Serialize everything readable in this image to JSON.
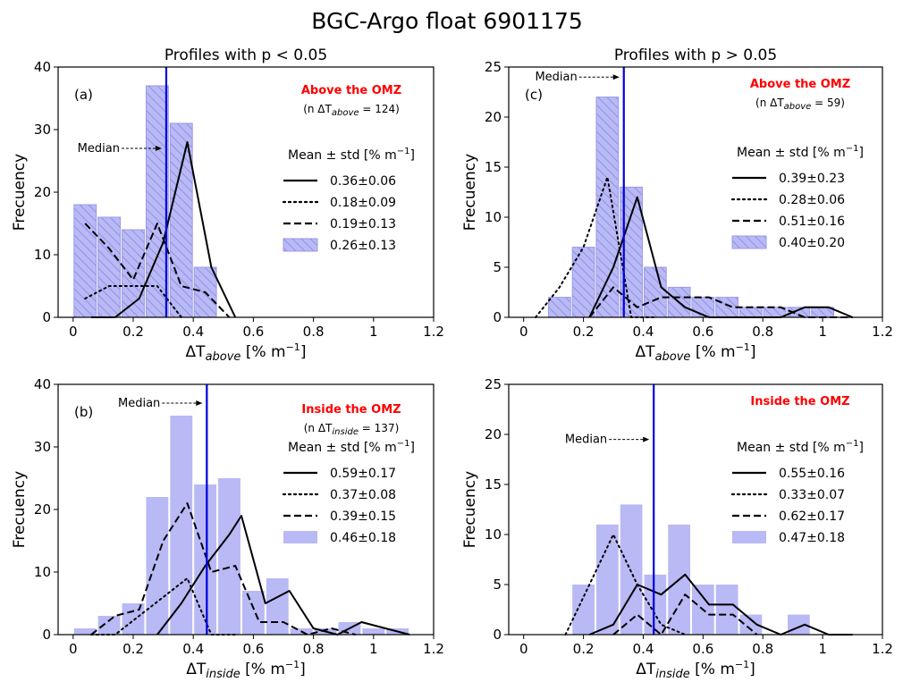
{
  "figure": {
    "title": "BGC-Argo float 6901175",
    "colors": {
      "hist": "#b9b9f5",
      "hist_edge": "#9a9ae8",
      "median": "#0000dd",
      "omz_text": "#ff0000",
      "lines": "#000000"
    }
  },
  "chart_data": [
    {
      "type": "bar",
      "panel": "(a)",
      "title": "Profiles with p < 0.05",
      "region_label": "Above the OMZ",
      "n_label": "(n ΔT",
      "n_sub": "above",
      "n_value": " = 124)",
      "xlabel": "ΔT",
      "xlabel_sub": "above",
      "xlabel_unit": "[% m",
      "ylabel": "Frecuency",
      "xlim": [
        -0.05,
        1.2
      ],
      "ylim": [
        0,
        40
      ],
      "xticks": [
        0,
        0.2,
        0.4,
        0.6,
        0.8,
        1,
        1.2
      ],
      "xtick_labels": [
        "0",
        "0.2",
        "0.4",
        "0.6",
        "0.8",
        "1",
        "1.2"
      ],
      "yticks": [
        0,
        10,
        20,
        30,
        40
      ],
      "hatched": true,
      "bin_width": 0.08,
      "bins": [
        {
          "x": 0.0,
          "value": 18
        },
        {
          "x": 0.08,
          "value": 16
        },
        {
          "x": 0.16,
          "value": 14
        },
        {
          "x": 0.24,
          "value": 37
        },
        {
          "x": 0.32,
          "value": 31
        },
        {
          "x": 0.4,
          "value": 8
        }
      ],
      "median": 0.31,
      "median_label": "Median",
      "median_label_y": 27,
      "median_side": "left",
      "legend_title": "Mean ± std [% m",
      "series": [
        {
          "name": "0.36±0.06",
          "style": "solid",
          "x": [
            0.06,
            0.14,
            0.22,
            0.3,
            0.38,
            0.46,
            0.54
          ],
          "y": [
            0,
            0,
            3,
            12,
            28,
            8,
            0
          ]
        },
        {
          "name": "0.18±0.09",
          "style": "dotted",
          "x": [
            0.04,
            0.12,
            0.2,
            0.28,
            0.36
          ],
          "y": [
            3,
            5,
            5,
            5,
            0
          ]
        },
        {
          "name": "0.19±0.13",
          "style": "dashed",
          "x": [
            0.04,
            0.12,
            0.2,
            0.28,
            0.36,
            0.44,
            0.52
          ],
          "y": [
            15,
            11,
            6,
            15,
            5,
            4,
            0
          ]
        },
        {
          "name": "0.26±0.13",
          "style": "hist"
        }
      ]
    },
    {
      "type": "bar",
      "panel": "(c)",
      "title": "Profiles with p > 0.05",
      "region_label": "Above the OMZ",
      "n_label": "(n ΔT",
      "n_sub": "above",
      "n_value": " = 59)",
      "xlabel": "ΔT",
      "xlabel_sub": "above",
      "xlabel_unit": "[% m",
      "ylabel": "Frecuency",
      "xlim": [
        -0.05,
        1.2
      ],
      "ylim": [
        0,
        25
      ],
      "xticks": [
        0,
        0.2,
        0.4,
        0.6,
        0.8,
        1,
        1.2
      ],
      "xtick_labels": [
        "0",
        "0.2",
        "0.4",
        "0.6",
        "0.8",
        "1",
        "1.2"
      ],
      "yticks": [
        0,
        5,
        10,
        15,
        20,
        25
      ],
      "hatched": true,
      "bin_width": 0.08,
      "bins": [
        {
          "x": 0.08,
          "value": 2
        },
        {
          "x": 0.16,
          "value": 7
        },
        {
          "x": 0.24,
          "value": 22
        },
        {
          "x": 0.32,
          "value": 13
        },
        {
          "x": 0.4,
          "value": 5
        },
        {
          "x": 0.48,
          "value": 3
        },
        {
          "x": 0.56,
          "value": 2
        },
        {
          "x": 0.64,
          "value": 2
        },
        {
          "x": 0.72,
          "value": 1
        },
        {
          "x": 0.8,
          "value": 1
        },
        {
          "x": 0.88,
          "value": 1
        },
        {
          "x": 0.96,
          "value": 1
        }
      ],
      "median": 0.335,
      "median_label": "Median",
      "median_label_y": 24,
      "median_side": "left",
      "legend_title": "Mean ± std [% m",
      "series": [
        {
          "name": "0.39±0.23",
          "style": "solid",
          "x": [
            0.22,
            0.3,
            0.38,
            0.46,
            0.54,
            0.62,
            0.7,
            0.78,
            0.86,
            0.94,
            1.02,
            1.1
          ],
          "y": [
            0,
            5,
            12,
            3,
            1,
            0,
            0,
            0,
            0,
            1,
            1,
            0
          ]
        },
        {
          "name": "0.28±0.06",
          "style": "dotted",
          "x": [
            0.04,
            0.12,
            0.2,
            0.28,
            0.36,
            0.44
          ],
          "y": [
            0,
            3,
            7,
            14,
            0,
            0
          ]
        },
        {
          "name": "0.51±0.16",
          "style": "dashed",
          "x": [
            0.22,
            0.3,
            0.38,
            0.46,
            0.54,
            0.62,
            0.7,
            0.78,
            0.86,
            0.94,
            1.02,
            1.1
          ],
          "y": [
            0,
            3,
            1,
            2,
            2,
            2,
            1,
            1,
            1,
            0,
            0,
            0
          ]
        },
        {
          "name": "0.40±0.20",
          "style": "hist"
        }
      ]
    },
    {
      "type": "bar",
      "panel": "(b)",
      "title": "",
      "region_label": "Inside the OMZ",
      "n_label": "(n ΔT",
      "n_sub": "inside",
      "n_value": " = 137)",
      "xlabel": "ΔT",
      "xlabel_sub": "inside",
      "xlabel_unit": "[% m",
      "ylabel": "Frecuency",
      "xlim": [
        -0.05,
        1.2
      ],
      "ylim": [
        0,
        40
      ],
      "xticks": [
        0,
        0.2,
        0.4,
        0.6,
        0.8,
        1,
        1.2
      ],
      "xtick_labels": [
        "0",
        "0.2",
        "0.4",
        "0.6",
        "0.8",
        "1",
        "1.2"
      ],
      "yticks": [
        0,
        10,
        20,
        30,
        40
      ],
      "hatched": false,
      "bin_width": 0.08,
      "bins": [
        {
          "x": 0.0,
          "value": 1
        },
        {
          "x": 0.08,
          "value": 3
        },
        {
          "x": 0.16,
          "value": 5
        },
        {
          "x": 0.24,
          "value": 22
        },
        {
          "x": 0.32,
          "value": 35
        },
        {
          "x": 0.4,
          "value": 24
        },
        {
          "x": 0.48,
          "value": 25
        },
        {
          "x": 0.56,
          "value": 7
        },
        {
          "x": 0.64,
          "value": 9
        },
        {
          "x": 0.72,
          "value": 1
        },
        {
          "x": 0.8,
          "value": 1
        },
        {
          "x": 0.88,
          "value": 2
        },
        {
          "x": 0.96,
          "value": 1
        },
        {
          "x": 1.04,
          "value": 1
        }
      ],
      "median": 0.445,
      "median_label": "Median",
      "median_label_y": 37,
      "median_side": "left",
      "legend_title": "Mean ± std [% m",
      "series": [
        {
          "name": "0.59±0.17",
          "style": "solid",
          "x": [
            0.28,
            0.36,
            0.44,
            0.52,
            0.56,
            0.64,
            0.72,
            0.8,
            0.88,
            0.96,
            1.04,
            1.12
          ],
          "y": [
            0,
            5,
            11,
            16,
            19,
            5,
            7,
            1,
            0,
            2,
            1,
            0
          ]
        },
        {
          "name": "0.37±0.08",
          "style": "dotted",
          "x": [
            0.06,
            0.14,
            0.22,
            0.3,
            0.38,
            0.46,
            0.54
          ],
          "y": [
            0,
            0,
            3,
            6,
            9,
            0,
            0
          ]
        },
        {
          "name": "0.39±0.15",
          "style": "dashed",
          "x": [
            0.06,
            0.14,
            0.22,
            0.3,
            0.38,
            0.46,
            0.54,
            0.62,
            0.7,
            0.78,
            0.86,
            0.94
          ],
          "y": [
            0,
            3,
            4,
            15,
            21,
            10,
            11,
            2,
            2,
            0,
            1,
            0
          ]
        },
        {
          "name": "0.46±0.18",
          "style": "hist"
        }
      ]
    },
    {
      "type": "bar",
      "panel": "",
      "title": "",
      "region_label": "Inside the OMZ",
      "n_label": "",
      "n_sub": "",
      "n_value": "",
      "xlabel": "ΔT",
      "xlabel_sub": "inside",
      "xlabel_unit": "[% m",
      "ylabel": "Frecuency",
      "xlim": [
        -0.05,
        1.2
      ],
      "ylim": [
        0,
        25
      ],
      "xticks": [
        0,
        0.2,
        0.4,
        0.6,
        0.8,
        1,
        1.2
      ],
      "xtick_labels": [
        "0",
        "0.2",
        "0.4",
        "0.6",
        "0.8",
        "1",
        "1.2"
      ],
      "yticks": [
        0,
        5,
        10,
        15,
        20,
        25
      ],
      "hatched": false,
      "bin_width": 0.08,
      "bins": [
        {
          "x": 0.16,
          "value": 5
        },
        {
          "x": 0.24,
          "value": 11
        },
        {
          "x": 0.32,
          "value": 13
        },
        {
          "x": 0.4,
          "value": 6
        },
        {
          "x": 0.48,
          "value": 11
        },
        {
          "x": 0.56,
          "value": 5
        },
        {
          "x": 0.64,
          "value": 5
        },
        {
          "x": 0.72,
          "value": 2
        },
        {
          "x": 0.88,
          "value": 2
        }
      ],
      "median": 0.435,
      "median_label": "Median",
      "median_label_y": 19.5,
      "median_side": "left",
      "legend_title": "Mean ± std [% m",
      "series": [
        {
          "name": "0.55±0.16",
          "style": "solid",
          "x": [
            0.22,
            0.3,
            0.38,
            0.46,
            0.54,
            0.62,
            0.7,
            0.78,
            0.86,
            0.94,
            1.02,
            1.1
          ],
          "y": [
            0,
            1,
            5,
            4,
            6,
            3,
            3,
            1,
            0,
            1,
            0,
            0
          ]
        },
        {
          "name": "0.33±0.07",
          "style": "dotted",
          "x": [
            0.14,
            0.22,
            0.3,
            0.38,
            0.46,
            0.54
          ],
          "y": [
            0,
            5,
            10,
            5,
            1,
            0
          ]
        },
        {
          "name": "0.62±0.17",
          "style": "dashed",
          "x": [
            0.3,
            0.38,
            0.46,
            0.54,
            0.62,
            0.7,
            0.78
          ],
          "y": [
            0,
            2,
            0,
            4,
            2,
            2,
            0
          ]
        },
        {
          "name": "0.47±0.18",
          "style": "hist"
        }
      ]
    }
  ]
}
